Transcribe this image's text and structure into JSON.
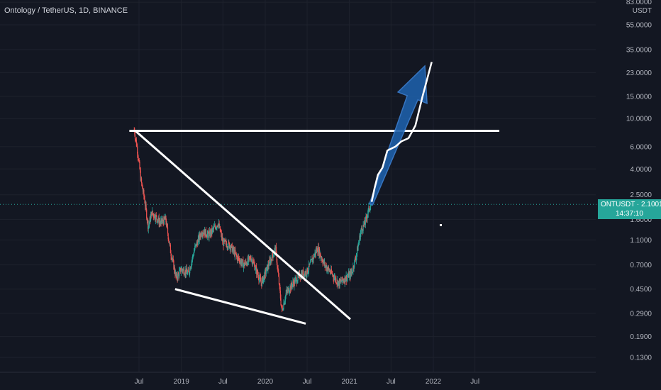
{
  "header": {
    "title": "Ontology / TetherUS, 1D, BINANCE"
  },
  "price_badge": {
    "symbol_price": "ONTUSDT · 2.1001",
    "countdown": "14:37:10"
  },
  "colors": {
    "background": "#131722",
    "up": "#26a69a",
    "down": "#ef5350",
    "drawing": "#ffffff",
    "arrow": "#2962ff"
  },
  "chart_data": {
    "type": "candlestick",
    "title": "Ontology / TetherUS, 1D, BINANCE",
    "y_axis": {
      "scale": "log",
      "unit": "USDT",
      "ticks": [
        "83.0000",
        "55.0000",
        "35.0000",
        "23.0000",
        "15.0000",
        "10.0000",
        "6.0000",
        "4.0000",
        "2.5000",
        "1.6000",
        "1.1000",
        "0.7000",
        "0.4500",
        "0.2900",
        "0.1900",
        "0.1300"
      ],
      "tick_values": [
        83,
        55,
        35,
        23,
        15,
        10,
        6,
        4,
        2.5,
        1.6,
        1.1,
        0.7,
        0.45,
        0.29,
        0.19,
        0.13
      ]
    },
    "x_axis": {
      "ticks": [
        "Jul",
        "2019",
        "Jul",
        "2020",
        "Jul",
        "2021",
        "Jul",
        "2022",
        "Jul"
      ],
      "tick_dates": [
        "2018-07-01",
        "2019-01-01",
        "2019-07-01",
        "2020-01-01",
        "2020-07-01",
        "2021-01-01",
        "2021-07-01",
        "2022-01-01",
        "2022-07-01"
      ]
    },
    "last_price": 2.1001,
    "price_path": [
      [
        "2018-06-10",
        8.2
      ],
      [
        "2018-06-25",
        5.5
      ],
      [
        "2018-07-10",
        3.2
      ],
      [
        "2018-07-25",
        2.3
      ],
      [
        "2018-08-10",
        1.4
      ],
      [
        "2018-08-25",
        1.8
      ],
      [
        "2018-09-10",
        1.7
      ],
      [
        "2018-10-01",
        1.5
      ],
      [
        "2018-10-25",
        1.6
      ],
      [
        "2018-11-15",
        0.9
      ],
      [
        "2018-12-10",
        0.55
      ],
      [
        "2019-01-01",
        0.65
      ],
      [
        "2019-02-01",
        0.6
      ],
      [
        "2019-03-01",
        0.95
      ],
      [
        "2019-04-01",
        1.3
      ],
      [
        "2019-05-01",
        1.2
      ],
      [
        "2019-06-10",
        1.5
      ],
      [
        "2019-07-01",
        1.05
      ],
      [
        "2019-08-01",
        1.0
      ],
      [
        "2019-09-01",
        0.8
      ],
      [
        "2019-10-01",
        0.7
      ],
      [
        "2019-11-01",
        0.8
      ],
      [
        "2019-12-15",
        0.5
      ],
      [
        "2020-01-15",
        0.7
      ],
      [
        "2020-02-15",
        0.95
      ],
      [
        "2020-03-13",
        0.3
      ],
      [
        "2020-04-01",
        0.42
      ],
      [
        "2020-05-01",
        0.5
      ],
      [
        "2020-06-01",
        0.58
      ],
      [
        "2020-07-01",
        0.62
      ],
      [
        "2020-08-15",
        0.95
      ],
      [
        "2020-09-15",
        0.7
      ],
      [
        "2020-10-15",
        0.6
      ],
      [
        "2020-11-15",
        0.5
      ],
      [
        "2020-12-15",
        0.55
      ],
      [
        "2021-01-10",
        0.6
      ],
      [
        "2021-02-01",
        0.85
      ],
      [
        "2021-02-20",
        1.3
      ],
      [
        "2021-03-10",
        1.5
      ],
      [
        "2021-03-25",
        1.9
      ],
      [
        "2021-04-05",
        2.1001
      ]
    ],
    "drawings": {
      "horizontal_resistance": {
        "price": 8.0,
        "from": "2018-05-20",
        "to": "2022-10-15"
      },
      "upper_trendline": {
        "from": [
          "2018-06-15",
          8.0
        ],
        "to": [
          "2021-01-05",
          0.26
        ]
      },
      "lower_trendline": {
        "from": [
          "2018-12-05",
          0.45
        ],
        "to": [
          "2020-06-25",
          0.24
        ]
      },
      "projection": [
        [
          "2021-04-08",
          2.2
        ],
        [
          "2021-04-20",
          2.8
        ],
        [
          "2021-05-05",
          3.6
        ],
        [
          "2021-05-25",
          4.1
        ],
        [
          "2021-06-15",
          5.6
        ],
        [
          "2021-07-20",
          6.0
        ],
        [
          "2021-08-15",
          6.6
        ],
        [
          "2021-09-15",
          7.0
        ],
        [
          "2021-10-15",
          8.8
        ],
        [
          "2021-11-15",
          15.0
        ],
        [
          "2021-12-25",
          28.0
        ]
      ],
      "arrow": {
        "tail": [
          "2021-04-05",
          2.1
        ],
        "head": [
          "2021-11-25",
          26.0
        ]
      }
    }
  }
}
